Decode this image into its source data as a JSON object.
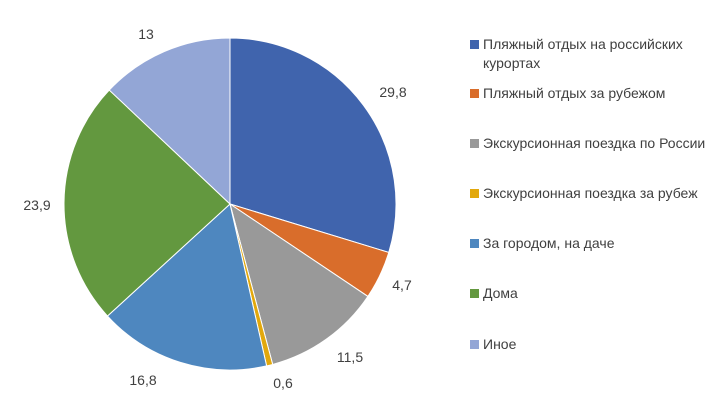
{
  "chart_data": {
    "type": "pie",
    "title": "",
    "start": "top",
    "direction": "clockwise",
    "legend_position": "right",
    "categories": [
      "Пляжный отдых на российских курортах",
      "Пляжный отдых за рубежом",
      "Экскурсионная поездка по России",
      "Экскурсионная поездка за рубеж",
      "За городом, на даче",
      "Дома",
      "Иное"
    ],
    "values": [
      29.8,
      4.7,
      11.5,
      0.6,
      16.8,
      23.9,
      13
    ],
    "value_labels": [
      "29,8",
      "4,7",
      "11,5",
      "0,6",
      "16,8",
      "23,9",
      "13"
    ],
    "colors": [
      "#4064AD",
      "#D96D2B",
      "#999999",
      "#E2A80C",
      "#4E87BF",
      "#63983F",
      "#93A6D6"
    ]
  }
}
